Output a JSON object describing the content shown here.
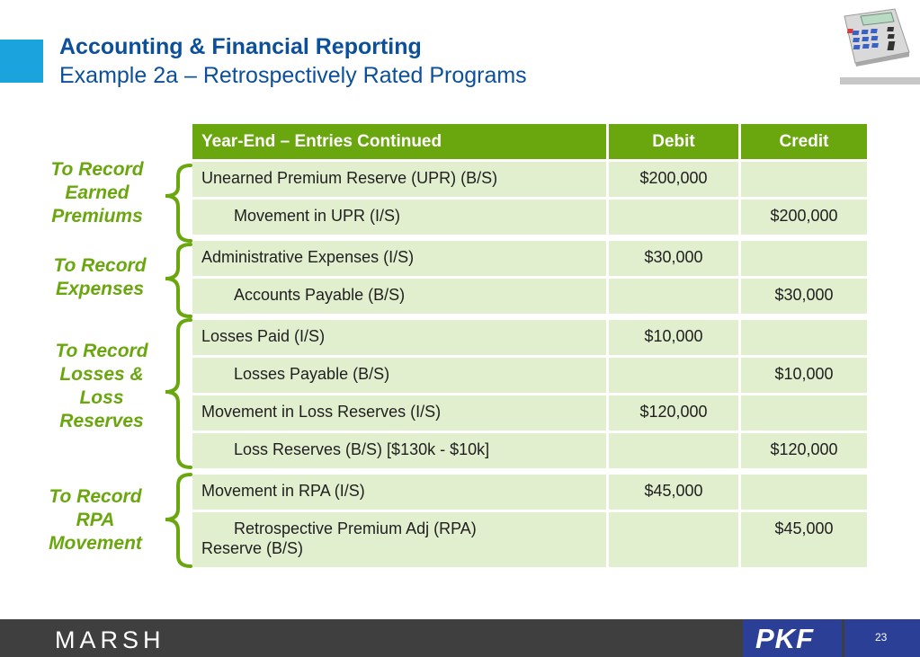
{
  "header": {
    "title": "Accounting & Financial Reporting",
    "subtitle": "Example 2a – Retrospectively Rated Programs"
  },
  "table": {
    "headers": [
      "Year-End – Entries Continued",
      "Debit",
      "Credit"
    ],
    "rows": [
      {
        "account": "Unearned Premium Reserve (UPR) (B/S)",
        "debit": "$200,000",
        "credit": ""
      },
      {
        "account": "Movement in UPR (I/S)",
        "debit": "",
        "credit": "$200,000"
      },
      {
        "account": "Administrative Expenses (I/S)",
        "debit": "$30,000",
        "credit": ""
      },
      {
        "account": "Accounts Payable (B/S)",
        "debit": "",
        "credit": "$30,000"
      },
      {
        "account": "Losses Paid (I/S)",
        "debit": "$10,000",
        "credit": ""
      },
      {
        "account": "Losses Payable (B/S)",
        "debit": "",
        "credit": "$10,000"
      },
      {
        "account": "Movement in Loss Reserves (I/S)",
        "debit": "$120,000",
        "credit": ""
      },
      {
        "account": "Loss Reserves (B/S) [$130k - $10k]",
        "debit": "",
        "credit": "$120,000"
      },
      {
        "account": "Movement in RPA (I/S)",
        "debit": "$45,000",
        "credit": ""
      },
      {
        "account_line1": "Retrospective Premium Adj (RPA)",
        "account_line2": "Reserve (B/S)",
        "debit": "",
        "credit": "$45,000"
      }
    ]
  },
  "groups": [
    {
      "label_lines": [
        "To Record",
        "Earned",
        "Premiums"
      ]
    },
    {
      "label_lines": [
        "To Record",
        "Expenses"
      ]
    },
    {
      "label_lines": [
        "To Record",
        "Losses &",
        "Loss",
        "Reserves"
      ]
    },
    {
      "label_lines": [
        "To Record",
        "RPA",
        "Movement"
      ]
    }
  ],
  "footer": {
    "brand_left": "MARSH",
    "brand_right": "PKF",
    "page_number": "23"
  },
  "colors": {
    "title_blue": "#0c4f9a",
    "accent_blue": "#1aa3dd",
    "table_green": "#6aa70f",
    "row_green": "#e1efcf",
    "footer_gray": "#3f3f3f",
    "pkf_blue": "#2b3f97"
  },
  "icons": {
    "calculator": "calculator-icon"
  }
}
